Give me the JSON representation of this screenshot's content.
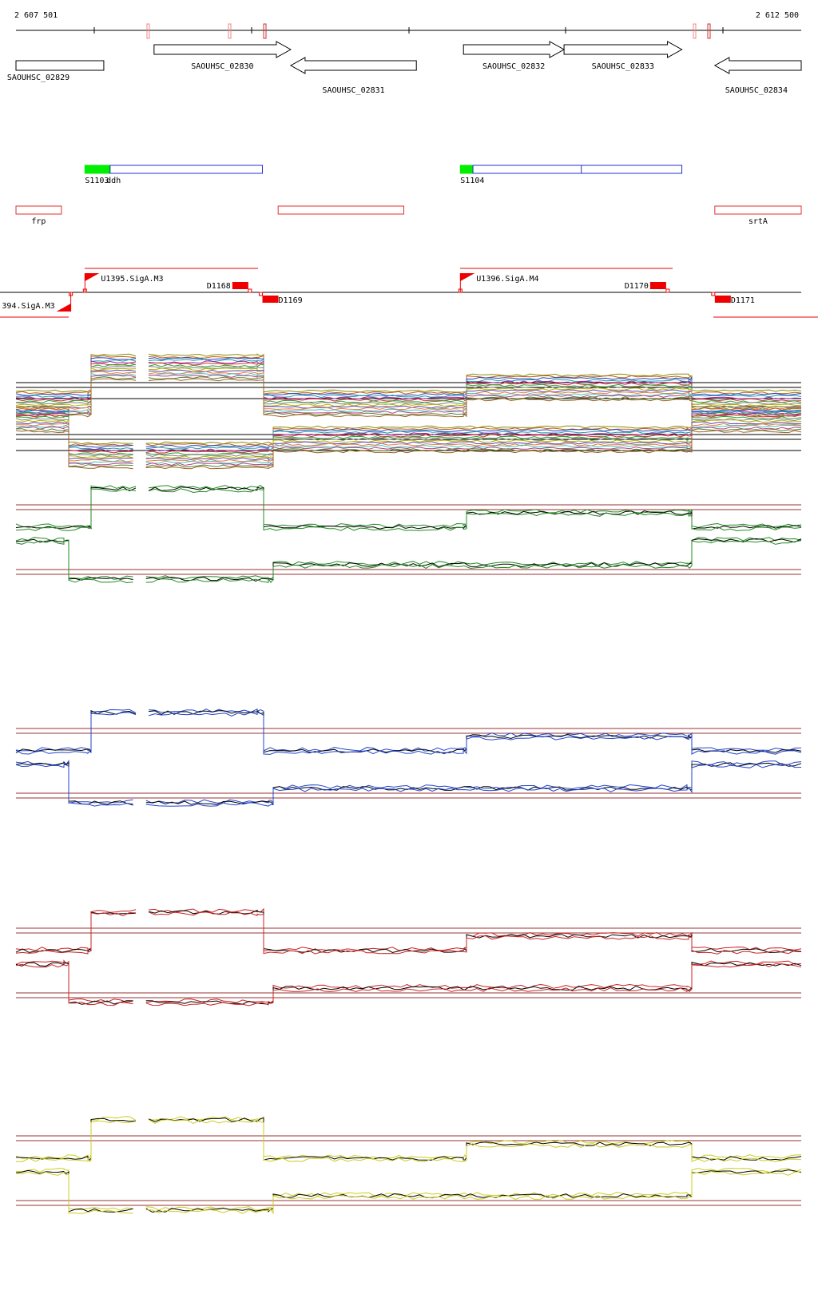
{
  "coords": {
    "start": "2 607 501",
    "end": "2 612 500"
  },
  "genes": [
    {
      "id": "SAOUHSC_02829",
      "dir": "box",
      "from": 2607501,
      "to": 2608060,
      "lane": 0
    },
    {
      "id": "SAOUHSC_02830",
      "dir": "right",
      "from": 2608380,
      "to": 2609250,
      "lane": 1
    },
    {
      "id": "SAOUHSC_02831",
      "dir": "left",
      "from": 2609250,
      "to": 2610050,
      "lane": 0
    },
    {
      "id": "SAOUHSC_02832",
      "dir": "right",
      "from": 2610350,
      "to": 2610990,
      "lane": 1
    },
    {
      "id": "SAOUHSC_02833",
      "dir": "right",
      "from": 2610990,
      "to": 2611740,
      "lane": 1
    },
    {
      "id": "SAOUHSC_02834",
      "dir": "left",
      "from": 2611950,
      "to": 2612500,
      "lane": 0
    }
  ],
  "operons": [
    {
      "start_label": "S1103",
      "name": "ddh",
      "green_from": 2607940,
      "green_to": 2608100,
      "blue_from": 2608100,
      "blue_to": 2609070,
      "split": null
    },
    {
      "start_label": "S1104",
      "name": "",
      "green_from": 2610330,
      "green_to": 2610410,
      "blue_from": 2610410,
      "blue_to": 2611740,
      "split": 2611100
    }
  ],
  "annotations": [
    {
      "name": "frp",
      "from": 2607501,
      "to": 2607790
    },
    {
      "name": "",
      "from": 2609170,
      "to": 2609970
    },
    {
      "name": "srtA",
      "from": 2611950,
      "to": 2612500
    }
  ],
  "sites": [
    {
      "label": "U1395.SigA.M3",
      "type": "promoter",
      "pos": 2607940
    },
    {
      "label": "D1168",
      "type": "terminator",
      "pos": 2608980
    },
    {
      "label": ".394.SigA.M3",
      "type": "promoter-rev",
      "pos": 2607850
    },
    {
      "label": "D1169",
      "type": "terminator-rev",
      "pos": 2609070
    },
    {
      "label": "U1396.SigA.M4",
      "type": "promoter",
      "pos": 2610330
    },
    {
      "label": "D1170",
      "type": "terminator",
      "pos": 2611640
    },
    {
      "label": "D1171",
      "type": "terminator-rev",
      "pos": 2611950
    }
  ],
  "colors": {
    "gene": "#000000",
    "annot": "#e03030",
    "op_green": "#00ee00",
    "op_blue": "#2233cc",
    "site": "#ee0000",
    "thresh": "#993333"
  },
  "expression_panels": [
    {
      "strand": "forward",
      "group": "all-conditions",
      "line_color": "multicolor"
    },
    {
      "strand": "reverse",
      "group": "all-conditions",
      "line_color": "multicolor"
    },
    {
      "strand": "forward",
      "group": "green",
      "line_color": "#228b22"
    },
    {
      "strand": "reverse",
      "group": "green",
      "line_color": "#228b22"
    },
    {
      "strand": "forward",
      "group": "blue",
      "line_color": "#2244cc"
    },
    {
      "strand": "reverse",
      "group": "blue",
      "line_color": "#2244cc"
    },
    {
      "strand": "forward",
      "group": "red",
      "line_color": "#cc2222"
    },
    {
      "strand": "reverse",
      "group": "red",
      "line_color": "#cc2222"
    },
    {
      "strand": "forward",
      "group": "yellow",
      "line_color": "#cccc22"
    },
    {
      "strand": "reverse",
      "group": "yellow",
      "line_color": "#cccc22"
    }
  ]
}
